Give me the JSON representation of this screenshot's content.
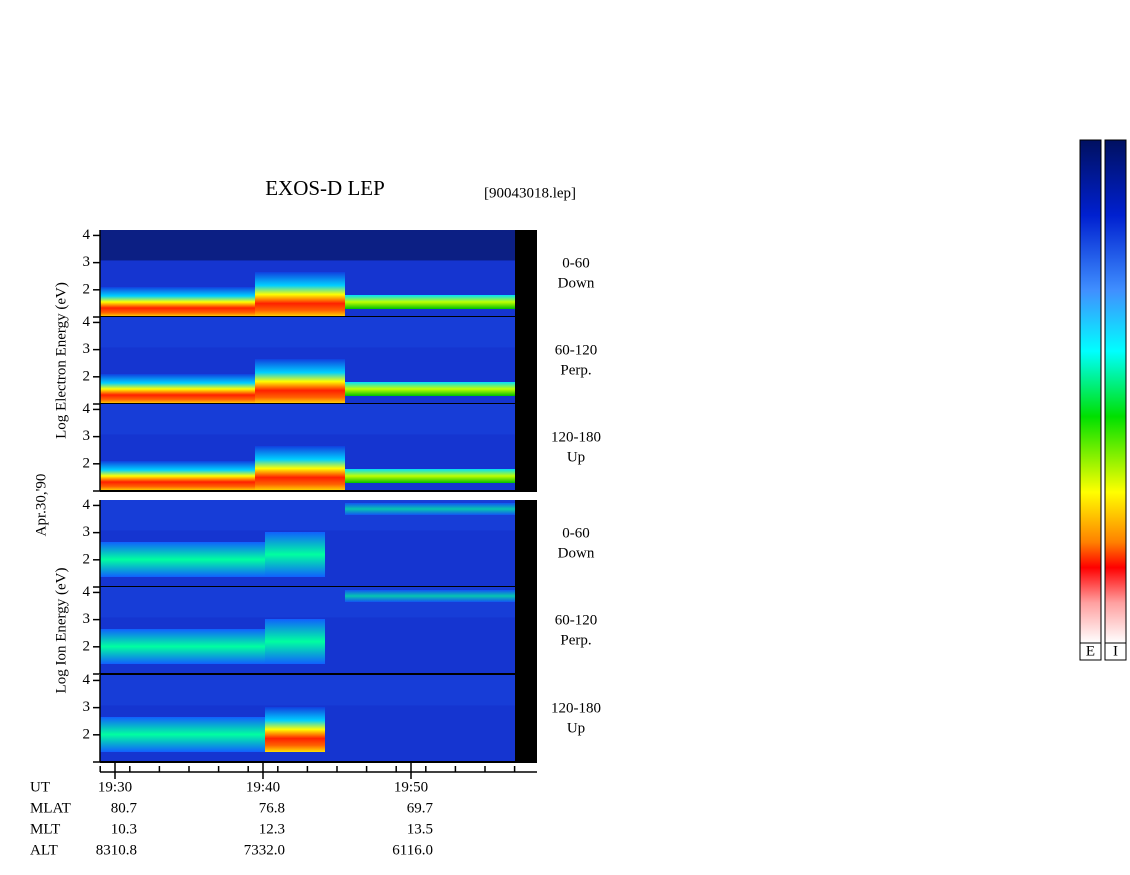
{
  "title": "EXOS-D LEP",
  "file": "[90043018.lep]",
  "date": "Apr.30,'90",
  "yticks": [
    2,
    3,
    4
  ],
  "ylim": [
    1,
    4.2
  ],
  "groups": [
    {
      "ylabel": "Log  Electron  Energy (eV)",
      "panels": [
        {
          "angle": "0-60",
          "direction": "Down"
        },
        {
          "angle": "60-120",
          "direction": "Perp."
        },
        {
          "angle": "120-180",
          "direction": "Up"
        }
      ]
    },
    {
      "ylabel": "Log  Ion  Energy (eV)",
      "panels": [
        {
          "angle": "0-60",
          "direction": "Down"
        },
        {
          "angle": "60-120",
          "direction": "Perp."
        },
        {
          "angle": "120-180",
          "direction": "Up"
        }
      ]
    }
  ],
  "footer": [
    {
      "name": "UT",
      "values": [
        "19:30",
        "19:40",
        "19:50"
      ]
    },
    {
      "name": "MLAT",
      "values": [
        "80.7",
        "76.8",
        "69.7"
      ]
    },
    {
      "name": "MLT",
      "values": [
        "10.3",
        "12.3",
        "13.5"
      ]
    },
    {
      "name": "ALT",
      "values": [
        "8310.8",
        "7332.0",
        "6116.0"
      ]
    }
  ],
  "colorbar": [
    "E",
    "I"
  ]
}
